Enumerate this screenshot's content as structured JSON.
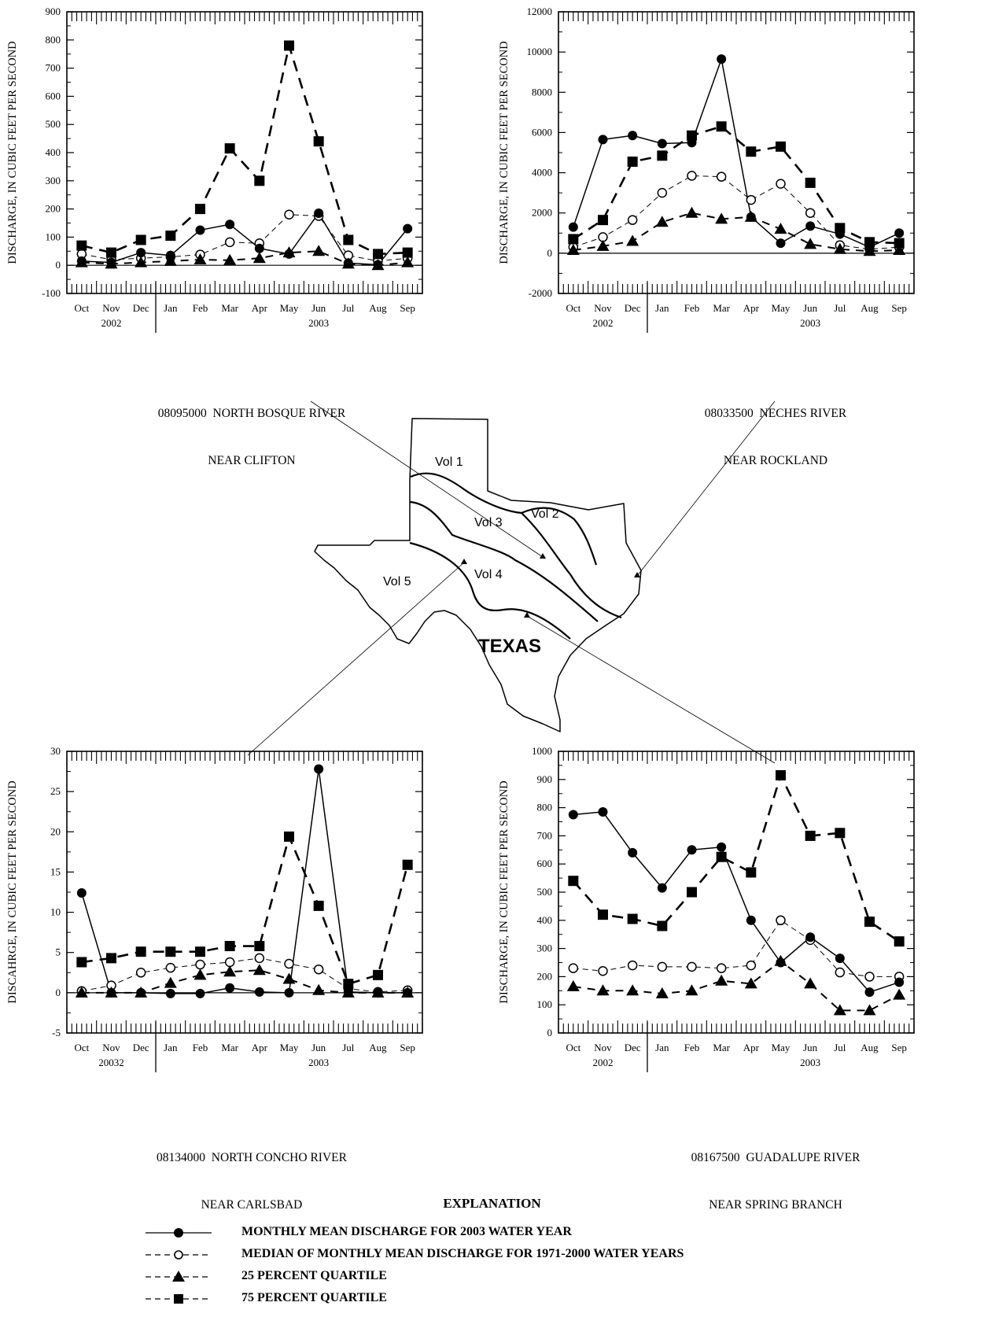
{
  "months": [
    "Oct",
    "Nov",
    "Dec",
    "Jan",
    "Feb",
    "Mar",
    "Apr",
    "May",
    "Jun",
    "Jul",
    "Aug",
    "Sep"
  ],
  "map": {
    "labels": [
      "Vol 1",
      "Vol 2",
      "Vol 3",
      "Vol 4",
      "Vol 5"
    ],
    "state_label": "TEXAS"
  },
  "explanation": {
    "title": "EXPLANATION",
    "items": [
      "MONTHLY MEAN DISCHARGE FOR 2003 WATER YEAR",
      "MEDIAN OF MONTHLY MEAN DISCHARGE FOR 1971-2000 WATER YEARS",
      "25 PERCENT QUARTILE",
      "75 PERCENT QUARTILE"
    ]
  },
  "chart_data": [
    {
      "type": "line",
      "caption_line1": "08095000  NORTH BOSQUE RIVER",
      "caption_line2": "NEAR CLIFTON",
      "ylabel": "DISCHARGE, IN CUBIC FEET PER SECOND",
      "year_left": "2002",
      "year_right": "2003",
      "ylim": [
        -100,
        900
      ],
      "yticks": [
        -100,
        0,
        100,
        200,
        300,
        400,
        500,
        600,
        700,
        800,
        900
      ],
      "categories": [
        "Oct",
        "Nov",
        "Dec",
        "Jan",
        "Feb",
        "Mar",
        "Apr",
        "May",
        "Jun",
        "Jul",
        "Aug",
        "Sep"
      ],
      "series": [
        {
          "key": "mean",
          "values": [
            15,
            10,
            45,
            35,
            125,
            145,
            60,
            40,
            185,
            8,
            2,
            130
          ]
        },
        {
          "key": "median",
          "values": [
            40,
            20,
            25,
            30,
            38,
            82,
            78,
            180,
            175,
            35,
            15,
            25
          ]
        },
        {
          "key": "q25",
          "values": [
            10,
            5,
            10,
            15,
            20,
            18,
            25,
            45,
            50,
            5,
            0,
            10
          ]
        },
        {
          "key": "q75",
          "values": [
            70,
            45,
            90,
            105,
            200,
            415,
            300,
            780,
            440,
            90,
            40,
            45
          ]
        }
      ]
    },
    {
      "type": "line",
      "caption_line1": "08033500  NECHES RIVER",
      "caption_line2": "NEAR ROCKLAND",
      "ylabel": "DISCHARGE, IN CUBIC FEET PER SECOND",
      "year_left": "2002",
      "year_right": "2003",
      "ylim": [
        -2000,
        12000
      ],
      "yticks": [
        -2000,
        0,
        2000,
        4000,
        6000,
        8000,
        10000,
        12000
      ],
      "categories": [
        "Oct",
        "Nov",
        "Dec",
        "Jan",
        "Feb",
        "Mar",
        "Apr",
        "May",
        "Jun",
        "Jul",
        "Aug",
        "Sep"
      ],
      "series": [
        {
          "key": "mean",
          "values": [
            1300,
            5650,
            5850,
            5450,
            5500,
            9650,
            1800,
            500,
            1350,
            950,
            300,
            1000
          ]
        },
        {
          "key": "median",
          "values": [
            300,
            800,
            1650,
            3000,
            3850,
            3800,
            2650,
            3450,
            2000,
            400,
            200,
            300
          ]
        },
        {
          "key": "q25",
          "values": [
            150,
            350,
            600,
            1550,
            2000,
            1700,
            1800,
            1200,
            450,
            200,
            100,
            150
          ]
        },
        {
          "key": "q75",
          "values": [
            700,
            1650,
            4550,
            4850,
            5850,
            6300,
            5050,
            5300,
            3500,
            1250,
            550,
            500
          ]
        }
      ]
    },
    {
      "type": "line",
      "caption_line1": "08134000  NORTH CONCHO RIVER",
      "caption_line2": "NEAR CARLSBAD",
      "ylabel": "DISCAHRGE, IN CUBIC FEET PER SECOND",
      "year_left": "20032",
      "year_right": "2003",
      "ylim": [
        -5,
        30
      ],
      "yticks": [
        -5,
        0,
        5,
        10,
        15,
        20,
        25,
        30
      ],
      "categories": [
        "Oct",
        "Nov",
        "Dec",
        "Jan",
        "Feb",
        "Mar",
        "Apr",
        "May",
        "Jun",
        "Jul",
        "Aug",
        "Sep"
      ],
      "series": [
        {
          "key": "mean",
          "values": [
            12.4,
            0,
            0,
            -0.1,
            -0.1,
            0.6,
            0.1,
            0,
            27.8,
            0.1,
            0,
            0
          ]
        },
        {
          "key": "median",
          "values": [
            0.2,
            0.9,
            2.5,
            3.1,
            3.5,
            3.8,
            4.3,
            3.6,
            2.9,
            0.5,
            0.1,
            0.3
          ]
        },
        {
          "key": "q25",
          "values": [
            0,
            0,
            0,
            1.2,
            2.2,
            2.6,
            2.8,
            1.7,
            0.3,
            0,
            0,
            0
          ]
        },
        {
          "key": "q75",
          "values": [
            3.8,
            4.3,
            5.1,
            5.1,
            5.1,
            5.8,
            5.8,
            19.4,
            10.8,
            1.1,
            2.2,
            15.9
          ]
        }
      ]
    },
    {
      "type": "line",
      "caption_line1": "08167500  GUADALUPE RIVER",
      "caption_line2": "NEAR SPRING BRANCH",
      "ylabel": "DISCHARGE, IN CUBIC FEET PER SECOND",
      "year_left": "2002",
      "year_right": "2003",
      "ylim": [
        0,
        1000
      ],
      "yticks": [
        0,
        100,
        200,
        300,
        400,
        500,
        600,
        700,
        800,
        900,
        1000
      ],
      "categories": [
        "Oct",
        "Nov",
        "Dec",
        "Jan",
        "Feb",
        "Mar",
        "Apr",
        "May",
        "Jun",
        "Jul",
        "Aug",
        "Sep"
      ],
      "series": [
        {
          "key": "mean",
          "values": [
            775,
            785,
            640,
            515,
            650,
            660,
            400,
            250,
            340,
            265,
            145,
            180
          ]
        },
        {
          "key": "median",
          "values": [
            230,
            220,
            240,
            235,
            235,
            230,
            240,
            400,
            330,
            215,
            200,
            200
          ]
        },
        {
          "key": "q25",
          "values": [
            165,
            150,
            150,
            140,
            150,
            185,
            175,
            255,
            175,
            80,
            80,
            135
          ]
        },
        {
          "key": "q75",
          "values": [
            540,
            420,
            405,
            380,
            500,
            625,
            570,
            915,
            700,
            710,
            395,
            325
          ]
        }
      ]
    }
  ]
}
